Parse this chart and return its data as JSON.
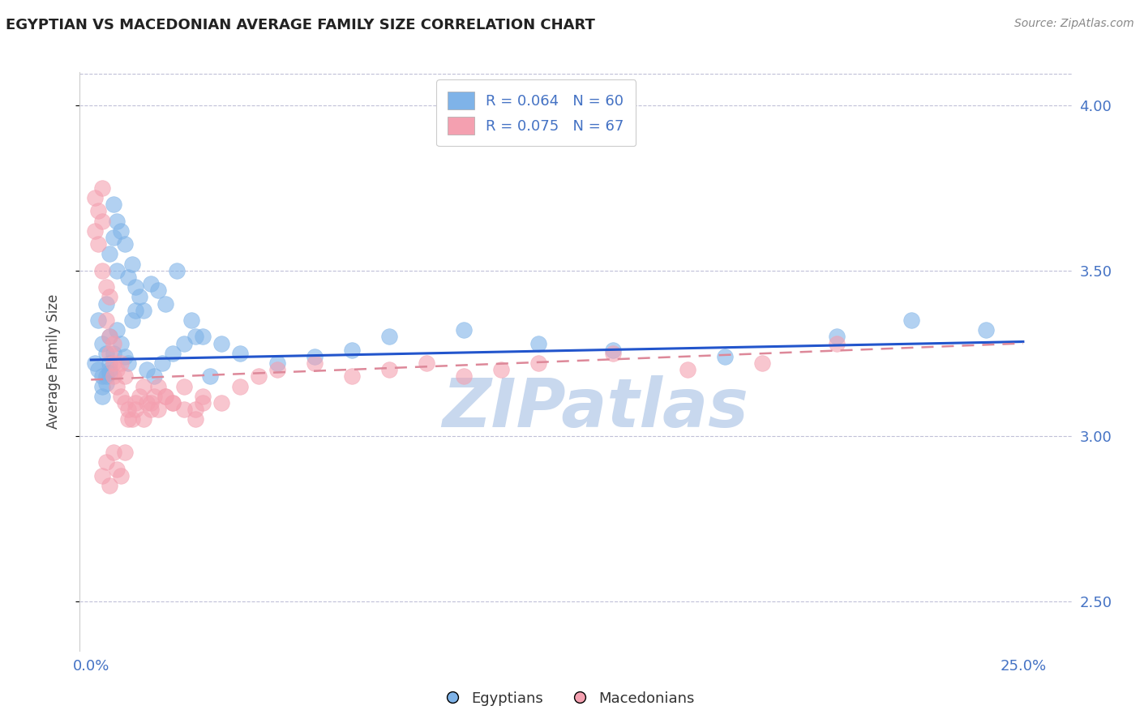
{
  "title": "EGYPTIAN VS MACEDONIAN AVERAGE FAMILY SIZE CORRELATION CHART",
  "source": "Source: ZipAtlas.com",
  "ylabel": "Average Family Size",
  "x_ticks": [
    0.0,
    0.05,
    0.1,
    0.15,
    0.2,
    0.25
  ],
  "x_tick_labels": [
    "0.0%",
    "",
    "",
    "",
    "",
    "25.0%"
  ],
  "ylim": [
    2.35,
    4.1
  ],
  "xlim": [
    -0.003,
    0.263
  ],
  "y_ticks_right": [
    2.5,
    3.0,
    3.5,
    4.0
  ],
  "title_color": "#222222",
  "title_fontsize": 13,
  "axis_color": "#4472c4",
  "grid_color": "#c0c0d8",
  "background_color": "#ffffff",
  "legend_r1": "R = 0.064   N = 60",
  "legend_r2": "R = 0.075   N = 67",
  "legend_label1": "Egyptians",
  "legend_label2": "Macedonians",
  "scatter_color_1": "#7fb3e8",
  "scatter_color_2": "#f4a0b0",
  "trend_color_1": "#2255cc",
  "trend_color_2": "#dd8899",
  "watermark": "ZIPatlas",
  "watermark_color": "#c8d8ee",
  "egyptians_x": [
    0.001,
    0.002,
    0.002,
    0.003,
    0.003,
    0.004,
    0.004,
    0.005,
    0.005,
    0.005,
    0.006,
    0.006,
    0.007,
    0.007,
    0.008,
    0.009,
    0.01,
    0.011,
    0.012,
    0.013,
    0.014,
    0.016,
    0.018,
    0.02,
    0.023,
    0.027,
    0.03,
    0.035,
    0.04,
    0.05,
    0.06,
    0.07,
    0.08,
    0.1,
    0.12,
    0.14,
    0.17,
    0.2,
    0.22,
    0.24,
    0.003,
    0.004,
    0.005,
    0.006,
    0.003,
    0.004,
    0.005,
    0.007,
    0.008,
    0.009,
    0.01,
    0.011,
    0.012,
    0.015,
    0.017,
    0.019,
    0.022,
    0.025,
    0.028,
    0.032
  ],
  "egyptians_y": [
    3.22,
    3.2,
    3.35,
    3.18,
    3.28,
    3.25,
    3.4,
    3.22,
    3.3,
    3.55,
    3.6,
    3.7,
    3.65,
    3.5,
    3.62,
    3.58,
    3.48,
    3.52,
    3.45,
    3.42,
    3.38,
    3.46,
    3.44,
    3.4,
    3.5,
    3.35,
    3.3,
    3.28,
    3.25,
    3.22,
    3.24,
    3.26,
    3.3,
    3.32,
    3.28,
    3.26,
    3.24,
    3.3,
    3.35,
    3.32,
    3.15,
    3.18,
    3.2,
    3.25,
    3.12,
    3.16,
    3.19,
    3.32,
    3.28,
    3.24,
    3.22,
    3.35,
    3.38,
    3.2,
    3.18,
    3.22,
    3.25,
    3.28,
    3.3,
    3.18
  ],
  "macedonians_x": [
    0.001,
    0.001,
    0.002,
    0.002,
    0.003,
    0.003,
    0.003,
    0.004,
    0.004,
    0.005,
    0.005,
    0.005,
    0.006,
    0.006,
    0.006,
    0.007,
    0.007,
    0.008,
    0.008,
    0.009,
    0.009,
    0.01,
    0.011,
    0.012,
    0.013,
    0.014,
    0.015,
    0.016,
    0.017,
    0.018,
    0.02,
    0.022,
    0.025,
    0.028,
    0.03,
    0.035,
    0.04,
    0.045,
    0.05,
    0.06,
    0.07,
    0.08,
    0.09,
    0.1,
    0.11,
    0.12,
    0.14,
    0.16,
    0.18,
    0.2,
    0.003,
    0.004,
    0.005,
    0.006,
    0.007,
    0.008,
    0.009,
    0.01,
    0.012,
    0.014,
    0.016,
    0.018,
    0.02,
    0.022,
    0.025,
    0.028,
    0.03
  ],
  "macedonians_y": [
    3.62,
    3.72,
    3.68,
    3.58,
    3.75,
    3.65,
    3.5,
    3.45,
    3.35,
    3.42,
    3.3,
    3.25,
    3.22,
    3.18,
    3.28,
    3.2,
    3.15,
    3.12,
    3.22,
    3.18,
    3.1,
    3.08,
    3.05,
    3.1,
    3.12,
    3.15,
    3.1,
    3.08,
    3.12,
    3.15,
    3.12,
    3.1,
    3.15,
    3.08,
    3.12,
    3.1,
    3.15,
    3.18,
    3.2,
    3.22,
    3.18,
    3.2,
    3.22,
    3.18,
    3.2,
    3.22,
    3.25,
    3.2,
    3.22,
    3.28,
    2.88,
    2.92,
    2.85,
    2.95,
    2.9,
    2.88,
    2.95,
    3.05,
    3.08,
    3.05,
    3.1,
    3.08,
    3.12,
    3.1,
    3.08,
    3.05,
    3.1
  ]
}
